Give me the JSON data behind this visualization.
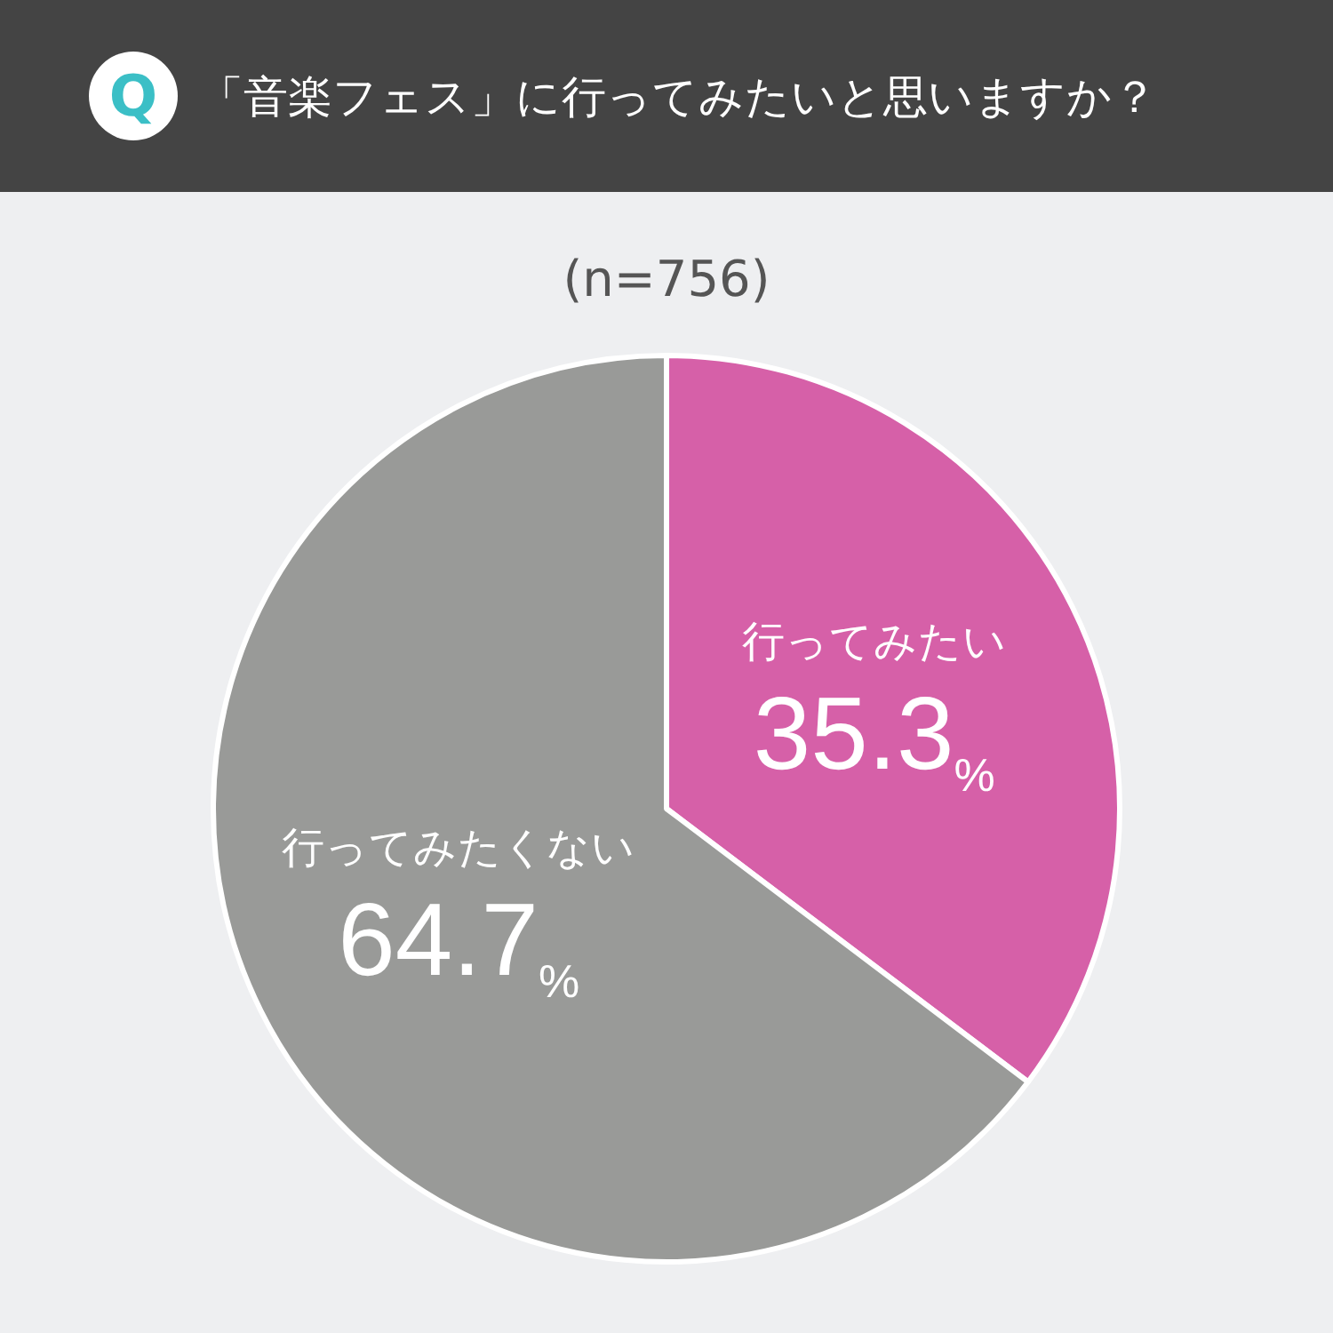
{
  "chart_data": {
    "type": "pie",
    "title": "「音楽フェス」に行ってみたいと思いますか？",
    "subtitle": "(n=756)",
    "annotations": [
      "Q"
    ],
    "categories": [
      "行ってみたい",
      "行ってみたくない"
    ],
    "values": [
      35.3,
      64.7
    ],
    "colors": [
      "#d660a8",
      "#999a98"
    ],
    "value_labels": [
      "35.3%",
      "64.7%"
    ],
    "legend": false
  }
}
